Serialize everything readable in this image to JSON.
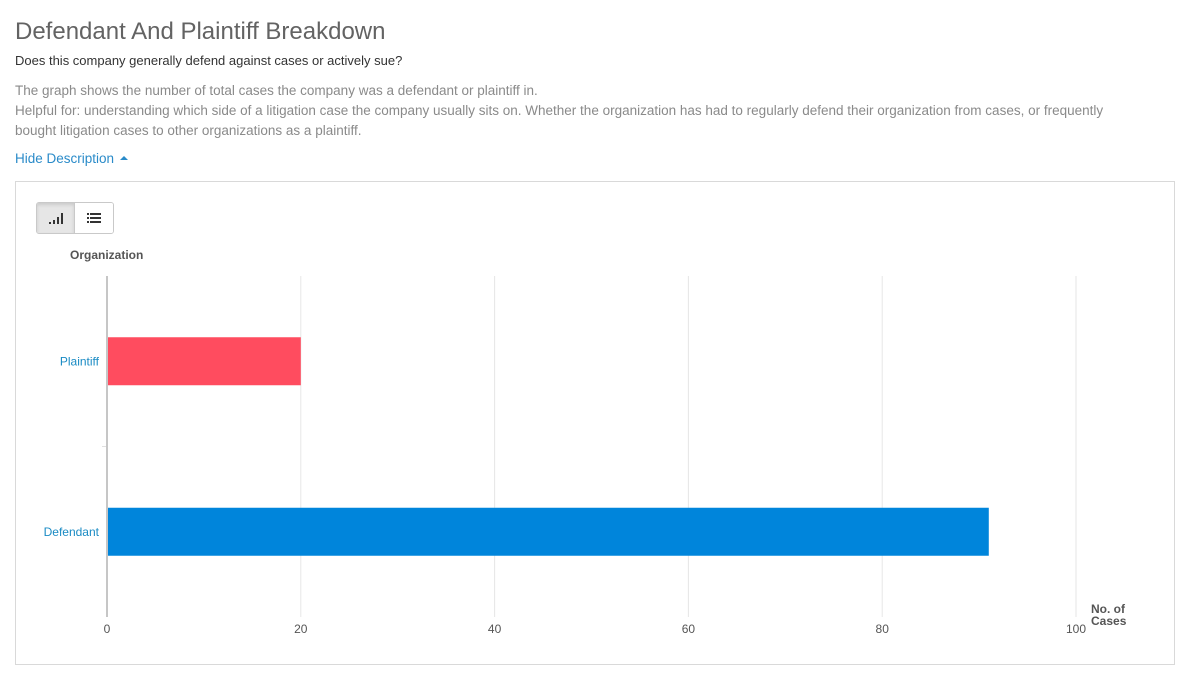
{
  "header": {
    "title": "Defendant And Plaintiff Breakdown",
    "subtitle": "Does this company generally defend against cases or actively sue?",
    "description_lines": [
      "The graph shows the number of total cases the company was a defendant or plaintiff in.",
      "Helpful for: understanding which side of a litigation case the company usually sits on. Whether the organization has had to regularly defend their organization from cases, or frequently",
      "bought litigation cases to other organizations as a plaintiff."
    ],
    "hide_description_label": "Hide Description"
  },
  "view_toggle": {
    "options": [
      "chart-view",
      "list-view"
    ],
    "active": "chart-view"
  },
  "colors": {
    "plaintiff": "#ff4c5f",
    "defendant": "#0085db",
    "category_label": "#1a8bc4",
    "grid": "#e6e6e6"
  },
  "chart_data": {
    "type": "bar",
    "orientation": "horizontal",
    "categories": [
      "Plaintiff",
      "Defendant"
    ],
    "values": [
      20,
      91
    ],
    "ylabel": "Organization",
    "xlabel": "No. of Cases",
    "xlim": [
      0,
      100
    ],
    "xticks": [
      0,
      20,
      40,
      60,
      80,
      100
    ],
    "grid": true,
    "legend": "none"
  }
}
